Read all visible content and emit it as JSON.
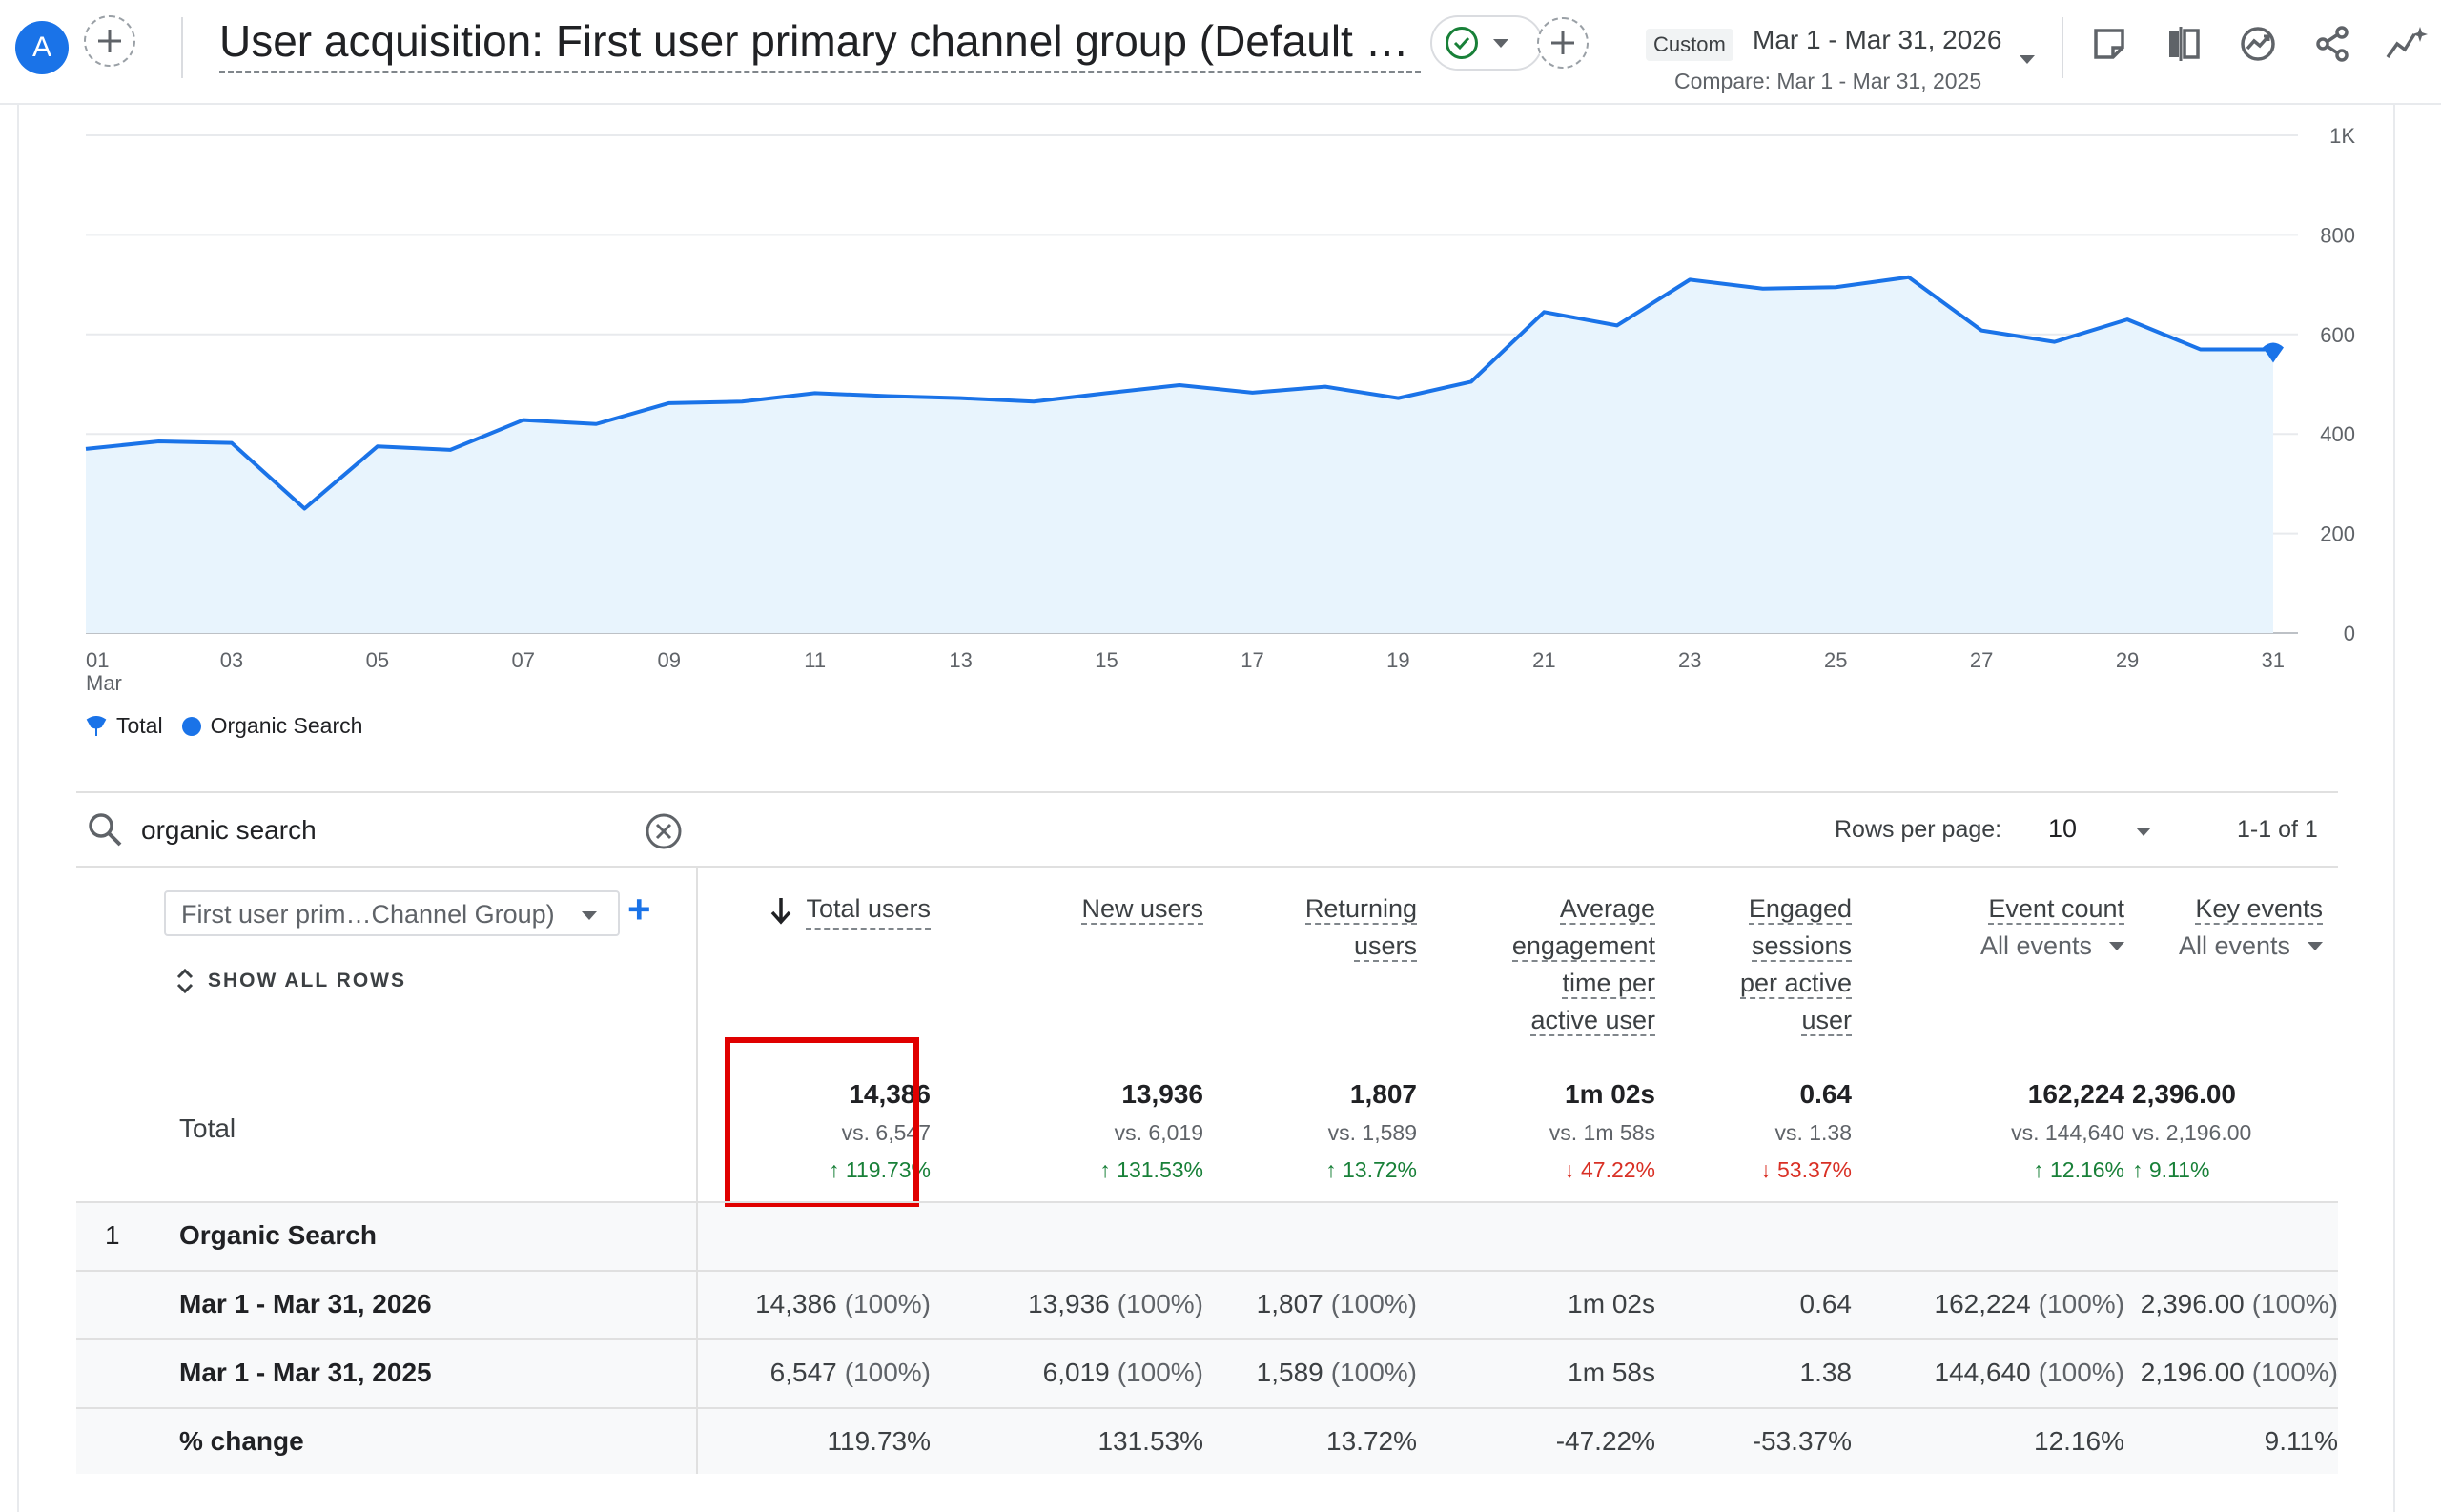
{
  "header": {
    "avatar_letter": "A",
    "title": "User acquisition: First user primary channel group (Default Chan...",
    "date_tag": "Custom",
    "date_range": "Mar 1 - Mar 31, 2026",
    "compare_range": "Compare: Mar 1 - Mar 31, 2025",
    "toolbar_icons": [
      "note-icon",
      "compare-columns-icon",
      "insights-icon",
      "share-icon",
      "spark-icon"
    ]
  },
  "chart_data": {
    "type": "area",
    "x": [
      "01",
      "02",
      "03",
      "04",
      "05",
      "06",
      "07",
      "08",
      "09",
      "10",
      "11",
      "12",
      "13",
      "14",
      "15",
      "16",
      "17",
      "18",
      "19",
      "20",
      "21",
      "22",
      "23",
      "24",
      "25",
      "26",
      "27",
      "28",
      "29",
      "30",
      "31"
    ],
    "x_tick_labels": [
      "01",
      "03",
      "05",
      "07",
      "09",
      "11",
      "13",
      "15",
      "17",
      "19",
      "21",
      "23",
      "25",
      "27",
      "29",
      "31"
    ],
    "x_month_label": "Mar",
    "y_tick_labels": [
      "0",
      "200",
      "400",
      "600",
      "800",
      "1K"
    ],
    "ylim": [
      0,
      1000
    ],
    "grid": true,
    "series": [
      {
        "name": "Organic Search",
        "color": "#1a73e8",
        "values": [
          370,
          385,
          382,
          250,
          375,
          368,
          428,
          420,
          462,
          465,
          482,
          476,
          472,
          465,
          482,
          498,
          483,
          495,
          472,
          505,
          645,
          618,
          710,
          692,
          695,
          715,
          608,
          585,
          630,
          570,
          570
        ]
      }
    ],
    "legend": [
      "Total",
      "Organic Search"
    ],
    "legend_position": "bottom-left"
  },
  "table_toolbar": {
    "search_value": "organic search",
    "rows_per_page_label": "Rows per page:",
    "rows_per_page_value": "10",
    "pagination": "1-1 of 1"
  },
  "table": {
    "dimension_select": "First user prim…Channel Group)",
    "show_all_rows": "SHOW ALL ROWS",
    "total_label": "Total",
    "columns": [
      {
        "label": "Total users",
        "sorted": true
      },
      {
        "label": "New users"
      },
      {
        "label_lines": [
          "Returning",
          "users"
        ]
      },
      {
        "label_lines": [
          "Average",
          "engagement",
          "time per",
          "active user"
        ]
      },
      {
        "label_lines": [
          "Engaged",
          "sessions",
          "per active",
          "user"
        ]
      },
      {
        "label": "Event count",
        "filter": "All events"
      },
      {
        "label": "Key events",
        "filter": "All events"
      }
    ],
    "totals": [
      {
        "value": "14,386",
        "vs": "vs. 6,547",
        "change": "119.73%",
        "dir": "up"
      },
      {
        "value": "13,936",
        "vs": "vs. 6,019",
        "change": "131.53%",
        "dir": "up"
      },
      {
        "value": "1,807",
        "vs": "vs. 1,589",
        "change": "13.72%",
        "dir": "up"
      },
      {
        "value": "1m 02s",
        "vs": "vs. 1m 58s",
        "change": "47.22%",
        "dir": "down"
      },
      {
        "value": "0.64",
        "vs": "vs. 1.38",
        "change": "53.37%",
        "dir": "down"
      },
      {
        "value": "162,224",
        "vs": "vs. 144,640",
        "change": "12.16%",
        "dir": "up"
      },
      {
        "value": "2,396.00",
        "vs": "vs. 2,196.00",
        "change": "9.11%",
        "dir": "up"
      }
    ],
    "group_row": {
      "index": "1",
      "label": "Organic Search"
    },
    "rows": [
      {
        "label": "Mar 1 - Mar 31, 2026",
        "cells": [
          {
            "v": "14,386",
            "p": "(100%)"
          },
          {
            "v": "13,936",
            "p": "(100%)"
          },
          {
            "v": "1,807",
            "p": "(100%)"
          },
          {
            "v": "1m 02s",
            "p": ""
          },
          {
            "v": "0.64",
            "p": ""
          },
          {
            "v": "162,224",
            "p": "(100%)"
          },
          {
            "v": "2,396.00",
            "p": "(100%)"
          }
        ]
      },
      {
        "label": "Mar 1 - Mar 31, 2025",
        "cells": [
          {
            "v": "6,547",
            "p": "(100%)"
          },
          {
            "v": "6,019",
            "p": "(100%)"
          },
          {
            "v": "1,589",
            "p": "(100%)"
          },
          {
            "v": "1m 58s",
            "p": ""
          },
          {
            "v": "1.38",
            "p": ""
          },
          {
            "v": "144,640",
            "p": "(100%)"
          },
          {
            "v": "2,196.00",
            "p": "(100%)"
          }
        ]
      },
      {
        "label": "% change",
        "cells": [
          {
            "v": "119.73%",
            "p": ""
          },
          {
            "v": "131.53%",
            "p": ""
          },
          {
            "v": "13.72%",
            "p": ""
          },
          {
            "v": "-47.22%",
            "p": ""
          },
          {
            "v": "-53.37%",
            "p": ""
          },
          {
            "v": "12.16%",
            "p": ""
          },
          {
            "v": "9.11%",
            "p": ""
          }
        ]
      }
    ]
  }
}
